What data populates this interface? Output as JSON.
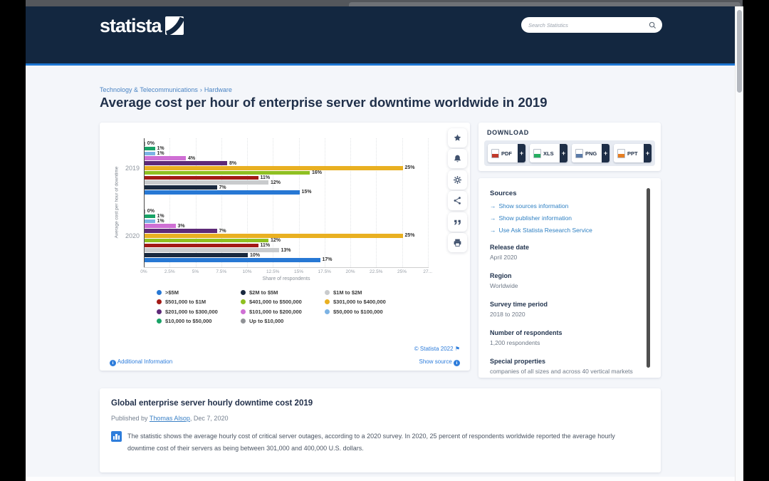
{
  "header": {
    "logo_text": "statista",
    "search_placeholder": "Search Statistics"
  },
  "breadcrumb": {
    "category": "Technology & Telecommunications",
    "separator": "›",
    "subcategory": "Hardware"
  },
  "page_title": "Average cost per hour of enterprise server downtime worldwide in 2019",
  "chart_data": {
    "type": "bar",
    "orientation": "horizontal",
    "title": "",
    "categories": [
      "2019",
      "2020"
    ],
    "series": [
      {
        "name": ">$5M",
        "color": "#2778d4",
        "values": [
          15,
          17
        ]
      },
      {
        "name": "$2M to $5M",
        "color": "#19293f",
        "values": [
          7,
          10
        ]
      },
      {
        "name": "$1M to $2M",
        "color": "#c9cbcd",
        "values": [
          12,
          13
        ]
      },
      {
        "name": "$501,000 to $1M",
        "color": "#a31a16",
        "values": [
          11,
          11
        ]
      },
      {
        "name": "$401,000 to $500,000",
        "color": "#8fc021",
        "values": [
          16,
          12
        ]
      },
      {
        "name": "$301,000 to $400,000",
        "color": "#e9b021",
        "values": [
          25,
          25
        ]
      },
      {
        "name": "$201,000 to $300,000",
        "color": "#5e2a78",
        "values": [
          8,
          7
        ]
      },
      {
        "name": "$101,000 to $200,000",
        "color": "#cf6fd4",
        "values": [
          4,
          3
        ]
      },
      {
        "name": "$50,000 to $100,000",
        "color": "#7cb3e4",
        "values": [
          1,
          1
        ]
      },
      {
        "name": "$10,000 to $50,000",
        "color": "#18a266",
        "values": [
          1,
          1
        ]
      },
      {
        "name": "Up to $10,000",
        "color": "#909296",
        "values": [
          0,
          0
        ]
      }
    ],
    "bar_order_note": "bars drawn top-to-bottom as reverse of series order (Up to $10,000 first, >$5M last)",
    "xlabel": "Share of respondents",
    "ylabel": "Average cost per hour of downtime",
    "xlim": [
      0,
      27.5
    ],
    "x_tick_values": [
      0,
      2.5,
      5,
      7.5,
      10,
      12.5,
      15,
      17.5,
      20,
      22.5,
      25,
      27.5
    ],
    "x_tick_labels": [
      "0%",
      "2.5%",
      "5%",
      "7.5%",
      "10%",
      "12.5%",
      "15%",
      "17.5%",
      "20%",
      "22.5%",
      "25%",
      "27..."
    ],
    "value_suffix": "%",
    "grid": true,
    "legend_position": "bottom"
  },
  "chart_card": {
    "copyright": "© Statista 2022",
    "show_source": "Show source",
    "additional_info": "Additional Information"
  },
  "toolbar": {
    "icons": [
      "star",
      "bell",
      "gear",
      "share",
      "quote",
      "print"
    ]
  },
  "download": {
    "label": "DOWNLOAD",
    "plus": "+",
    "formats": [
      {
        "label": "PDF",
        "color": "#c0392b"
      },
      {
        "label": "XLS",
        "color": "#27ae60"
      },
      {
        "label": "PNG",
        "color": "#5b7ba8"
      },
      {
        "label": "PPT",
        "color": "#e67e22"
      }
    ]
  },
  "details": {
    "sources_title": "Sources",
    "links": [
      "Show sources information",
      "Show publisher information",
      "Use Ask Statista Research Service"
    ],
    "fields": [
      {
        "label": "Release date",
        "value": "April 2020"
      },
      {
        "label": "Region",
        "value": "Worldwide"
      },
      {
        "label": "Survey time period",
        "value": "2018 to 2020"
      },
      {
        "label": "Number of respondents",
        "value": "1,200 respondents"
      },
      {
        "label": "Special properties",
        "value": "companies of all sizes and across 40 vertical markets"
      }
    ]
  },
  "description": {
    "title": "Global enterprise server hourly downtime cost 2019",
    "published_prefix": "Published by",
    "author": "Thomas Alsop",
    "date_suffix": ", Dec 7, 2020",
    "body": "The statistic shows the average hourly cost of critical server outages, according to a 2020 survey. In 2020, 25 percent of respondents worldwide reported the average hourly downtime cost of their servers as being between 301,000 and 400,000 U.S. dollars."
  }
}
